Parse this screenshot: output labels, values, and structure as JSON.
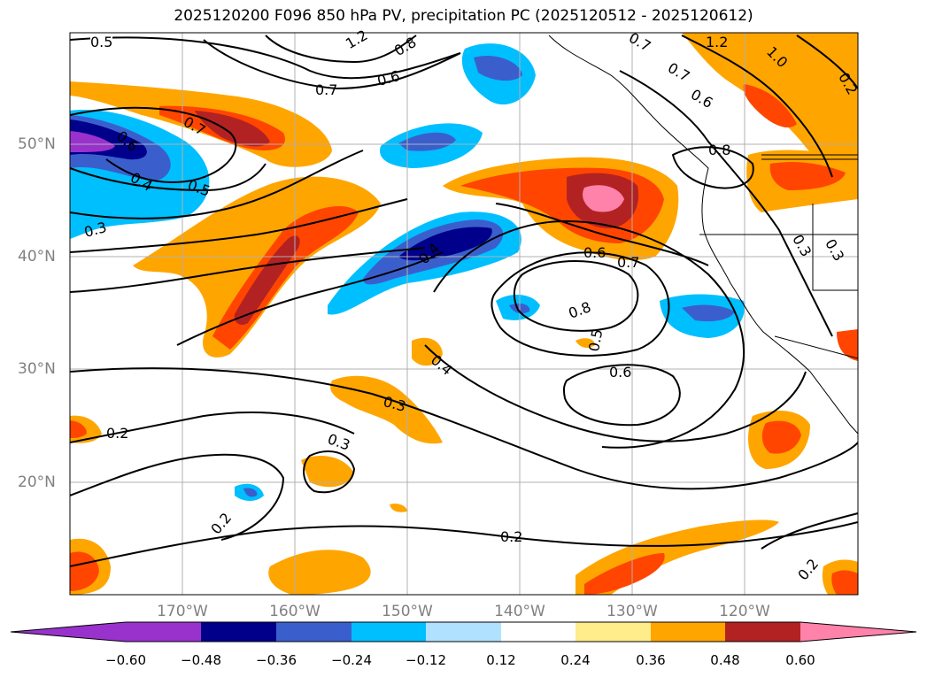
{
  "title": "2025120200 F096 850 hPa PV, precipitation PC (2025120512 - 2025120612)",
  "lat_labels": [
    "50°N",
    "40°N",
    "30°N",
    "20°N"
  ],
  "lon_labels": [
    "170°W",
    "160°W",
    "150°W",
    "140°W",
    "130°W",
    "120°W"
  ],
  "contour_labels": [
    "0.5",
    "1.2",
    "0.8",
    "0.7",
    "0.6",
    "0.7",
    "0.6",
    "0.7",
    "0.6",
    "0.5",
    "0.4",
    "0.3",
    "0.4",
    "0.6",
    "0.7",
    "0.8",
    "0.5",
    "0.6",
    "0.4",
    "0.3",
    "0.3",
    "0.2",
    "0.2",
    "0.2",
    "0.3",
    "0.2",
    "0.8",
    "1.2",
    "1.0",
    "0.7",
    "0.3",
    "0.2"
  ],
  "colorbar": {
    "ticks": [
      "−0.60",
      "−0.48",
      "−0.36",
      "−0.24",
      "−0.12",
      "0.12",
      "0.24",
      "0.36",
      "0.48",
      "0.60"
    ],
    "colors": {
      "min_extend": "#9932cc",
      "bins": [
        "#9932cc",
        "#00008b",
        "#3a5fcd",
        "#00bfff",
        "#b0e2ff",
        "#ffffff",
        "#ffec8b",
        "#ffa500",
        "#ff4500",
        "#b22222"
      ],
      "max_extend": "#ff82ab"
    }
  }
}
